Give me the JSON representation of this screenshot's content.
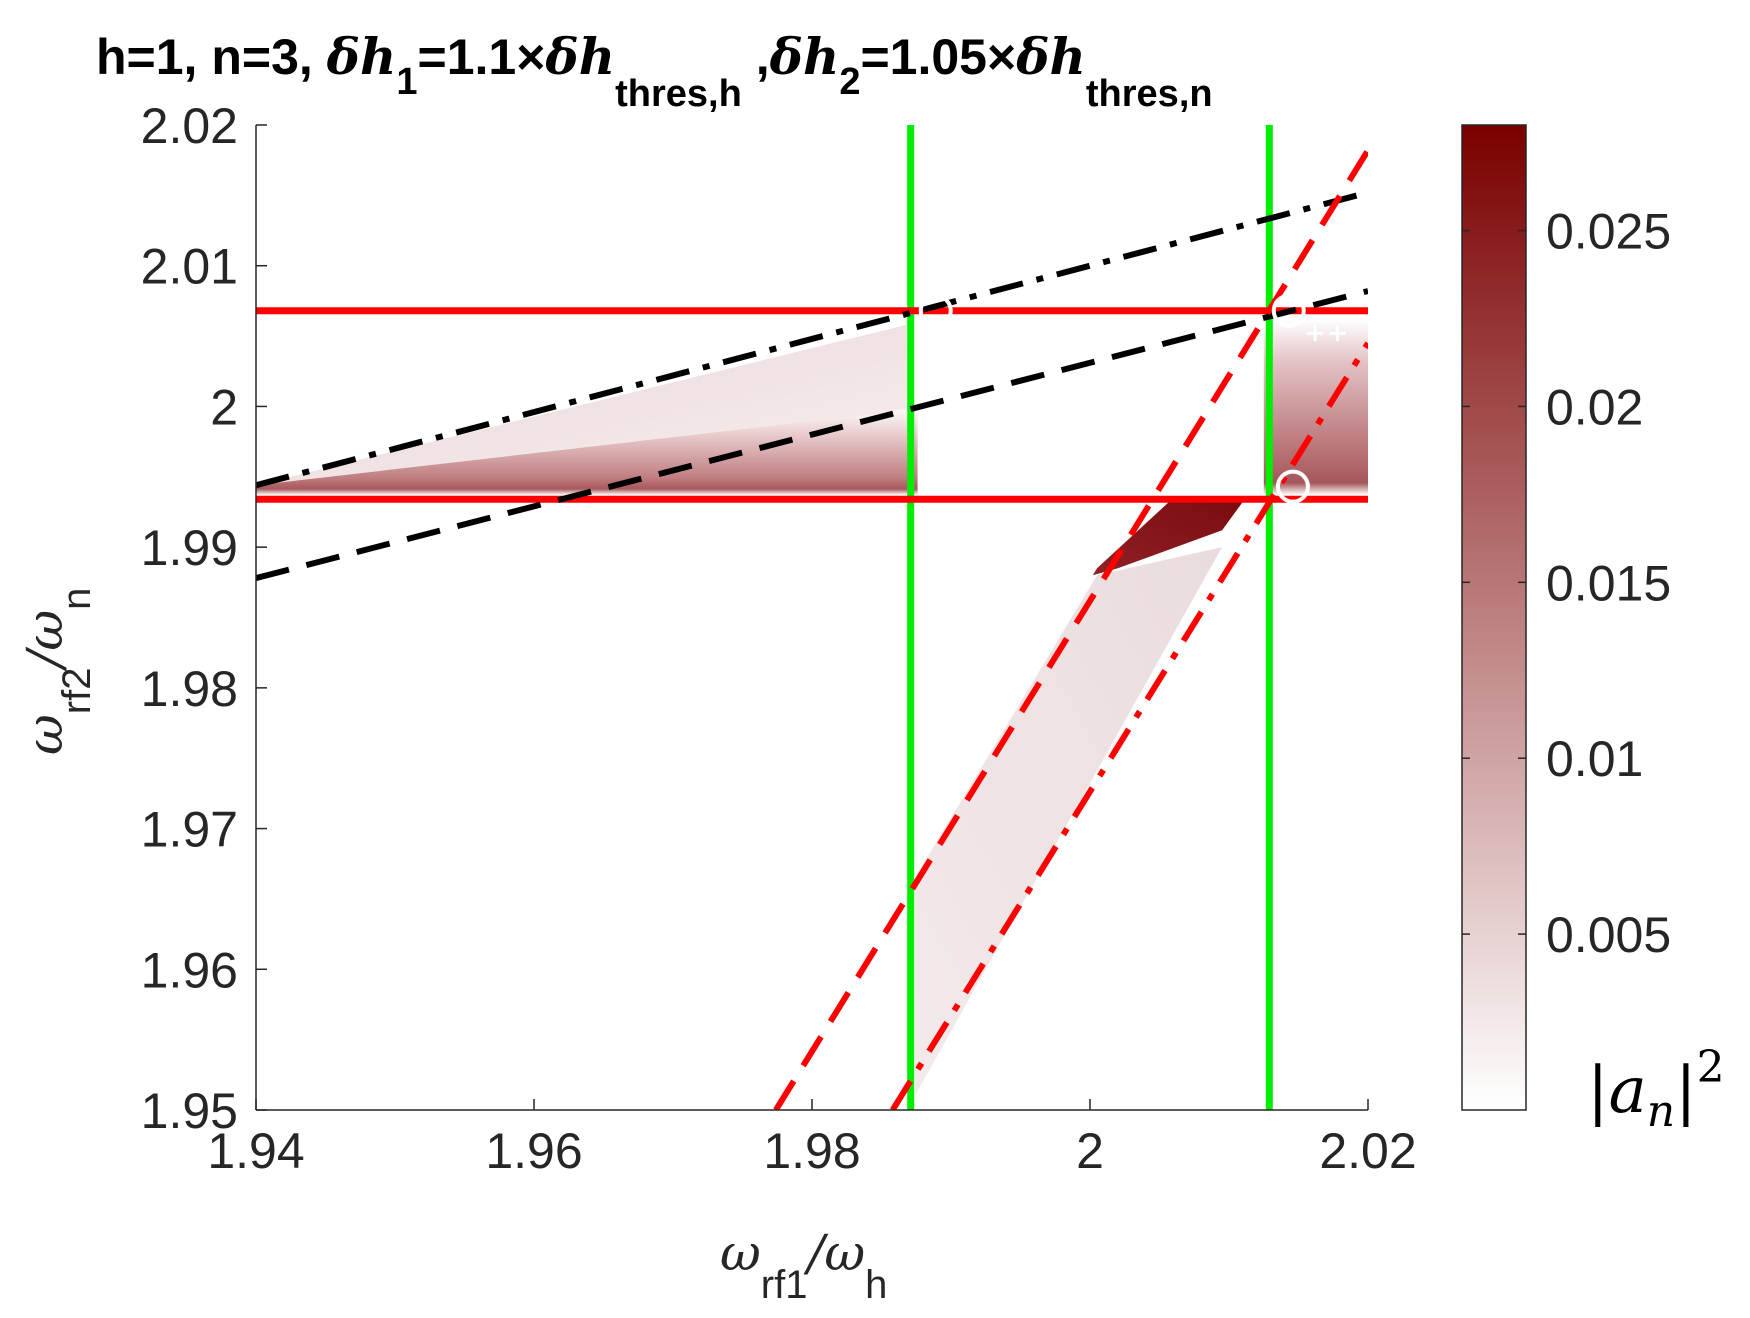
{
  "chart_data": {
    "type": "heatmap",
    "title": {
      "prefix": "h=1, n=3, ",
      "part1_var": "δh",
      "part1_sub": "1",
      "part1_eq": "=1.1×",
      "part1_rhs_var": "δh",
      "part1_rhs_sub": "thres,h",
      "part2_lead": " ,",
      "part2_var": "δh",
      "part2_sub": "2",
      "part2_eq": "=1.05×",
      "part2_rhs_var": "δh",
      "part2_rhs_sub": "thres,n"
    },
    "xlabel": {
      "main": "ω",
      "sub": "rf1",
      "sep": "/ω",
      "sub2": "h"
    },
    "ylabel": {
      "main": "ω",
      "sub": "rf2",
      "sep": "/ω",
      "sub2": "n"
    },
    "xlim": [
      1.94,
      2.02
    ],
    "ylim": [
      1.95,
      2.02
    ],
    "xticks": [
      1.94,
      1.96,
      1.98,
      2.0,
      2.02
    ],
    "xtick_labels": [
      "1.94",
      "1.96",
      "1.98",
      "2",
      "2.02"
    ],
    "yticks": [
      1.95,
      1.96,
      1.97,
      1.98,
      1.99,
      2.0,
      2.01,
      2.02
    ],
    "ytick_labels": [
      "1.95",
      "1.96",
      "1.97",
      "1.98",
      "1.99",
      "2",
      "2.01",
      "2.02"
    ],
    "colorbar": {
      "label_main": "|a",
      "label_sub": "n",
      "label_tail": "|",
      "label_sup": "2",
      "range": [
        0,
        0.028
      ],
      "ticks": [
        0.005,
        0.01,
        0.015,
        0.02,
        0.025
      ],
      "tick_labels": [
        "0.005",
        "0.01",
        "0.015",
        "0.02",
        "0.025"
      ],
      "color_low": "#ffffff",
      "color_high": "#7a0000"
    },
    "lines": [
      {
        "name": "green-vertical-left",
        "style": "solid",
        "color": "#00ee00",
        "x": [
          1.9871,
          1.9871
        ],
        "y": [
          1.95,
          2.02
        ]
      },
      {
        "name": "green-vertical-right",
        "style": "solid",
        "color": "#00ee00",
        "x": [
          2.0129,
          2.0129
        ],
        "y": [
          1.95,
          2.02
        ]
      },
      {
        "name": "red-horizontal-top",
        "style": "solid",
        "color": "#ff0000",
        "x": [
          1.94,
          2.02
        ],
        "y": [
          2.0068,
          2.0068
        ]
      },
      {
        "name": "red-horizontal-bottom",
        "style": "solid",
        "color": "#ff0000",
        "x": [
          1.94,
          2.02
        ],
        "y": [
          1.9934,
          1.9934
        ]
      },
      {
        "name": "black-dashdot",
        "style": "dashdot",
        "color": "#000000",
        "x": [
          1.94,
          2.02
        ],
        "y": [
          1.9944,
          2.0152
        ]
      },
      {
        "name": "black-dashed",
        "style": "dashed",
        "color": "#000000",
        "x": [
          1.94,
          2.02
        ],
        "y": [
          1.9878,
          2.0082
        ]
      },
      {
        "name": "red-dashed",
        "style": "dashed",
        "color": "#ff0000",
        "x": [
          1.9774,
          2.02
        ],
        "y": [
          1.95,
          2.0182
        ]
      },
      {
        "name": "red-dashdot",
        "style": "dashdot",
        "color": "#ff0000",
        "x": [
          1.9858,
          2.02
        ],
        "y": [
          1.95,
          2.0045
        ]
      }
    ],
    "markers": [
      {
        "symbol": "o",
        "color": "#ffffff",
        "x": 1.9889,
        "y": 2.0068
      },
      {
        "symbol": "o",
        "color": "#ffffff",
        "x": 2.0143,
        "y": 2.0068
      },
      {
        "symbol": "o",
        "color": "#ffffff",
        "x": 2.0146,
        "y": 1.9943
      },
      {
        "symbol": "+",
        "color": "#ffffff",
        "x": 2.0162,
        "y": 2.0052
      },
      {
        "symbol": "+",
        "color": "#ffffff",
        "x": 2.0178,
        "y": 2.0052
      }
    ],
    "regions": [
      {
        "name": "band-left-upper-wedge",
        "x": [
          1.94,
          1.9868,
          1.9868,
          1.94
        ],
        "y": [
          1.9944,
          2.0058,
          1.9995,
          1.9944
        ],
        "peak": 0.009
      },
      {
        "name": "band-left-lower",
        "x": [
          1.94,
          1.9848,
          1.9876,
          1.9876,
          1.94
        ],
        "y": [
          1.9944,
          1.9995,
          2.0,
          1.9937,
          1.9937
        ],
        "peak": 0.022
      },
      {
        "name": "band-right",
        "x": [
          2.0125,
          2.02,
          2.02,
          2.0125
        ],
        "y": [
          2.0062,
          2.0062,
          1.9937,
          1.9937
        ],
        "peak": 0.022
      },
      {
        "name": "right-dark-blob",
        "x": [
          2.0005,
          2.006,
          2.0112,
          2.0095,
          2.002,
          2.0002
        ],
        "y": [
          1.9885,
          1.9935,
          1.9935,
          1.9912,
          1.9885,
          1.988
        ],
        "peak": 0.028
      },
      {
        "name": "diagonal-light-streak",
        "x": [
          1.9874,
          2.0005,
          2.0095,
          1.9874
        ],
        "y": [
          1.9665,
          1.988,
          1.99,
          1.951
        ],
        "peak": 0.004
      }
    ]
  }
}
